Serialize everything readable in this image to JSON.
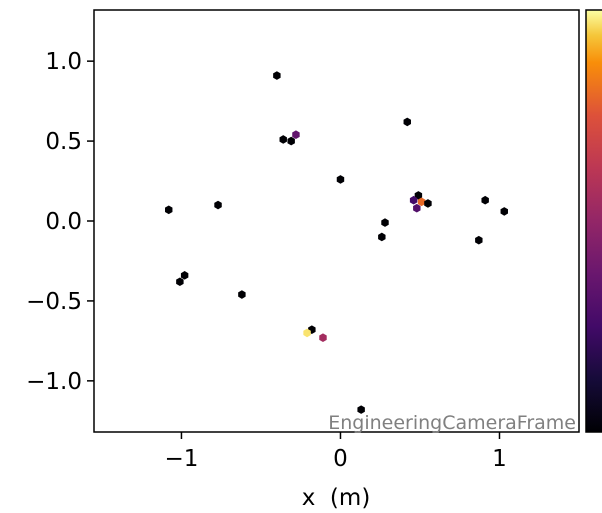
{
  "chart_data": {
    "type": "scatter",
    "xlabel": "x  (m)",
    "ylabel": "",
    "xlim": [
      -1.55,
      1.5
    ],
    "ylim": [
      -1.32,
      1.32
    ],
    "xticks": [
      -1,
      0,
      1
    ],
    "yticks": [
      1.0,
      0.5,
      0.0,
      -0.5,
      -1.0
    ],
    "xtick_labels": [
      "−1",
      "0",
      "1"
    ],
    "ytick_labels": [
      "1.0",
      "0.5",
      "0.0",
      "−0.5",
      "−1.0"
    ],
    "annotation": "EngineeringCameraFrame",
    "colormap": "inferno",
    "colorbar_range": [
      0,
      1
    ],
    "grid": false,
    "points": [
      {
        "x": -0.4,
        "y": 0.91,
        "c": 0.0
      },
      {
        "x": -0.36,
        "y": 0.51,
        "c": 0.0
      },
      {
        "x": -0.31,
        "y": 0.5,
        "c": 0.0
      },
      {
        "x": -0.28,
        "y": 0.54,
        "c": 0.35
      },
      {
        "x": 0.42,
        "y": 0.62,
        "c": 0.0
      },
      {
        "x": 0.0,
        "y": 0.26,
        "c": 0.0
      },
      {
        "x": -1.08,
        "y": 0.07,
        "c": 0.0
      },
      {
        "x": -0.77,
        "y": 0.1,
        "c": 0.0
      },
      {
        "x": 0.49,
        "y": 0.16,
        "c": 0.0
      },
      {
        "x": 0.46,
        "y": 0.13,
        "c": 0.25
      },
      {
        "x": 0.51,
        "y": 0.12,
        "c": 0.8
      },
      {
        "x": 0.55,
        "y": 0.11,
        "c": 0.0
      },
      {
        "x": 0.48,
        "y": 0.08,
        "c": 0.3
      },
      {
        "x": 0.91,
        "y": 0.13,
        "c": 0.0
      },
      {
        "x": 1.03,
        "y": 0.06,
        "c": 0.0
      },
      {
        "x": 0.28,
        "y": -0.01,
        "c": 0.0
      },
      {
        "x": 0.26,
        "y": -0.1,
        "c": 0.0
      },
      {
        "x": 0.87,
        "y": -0.12,
        "c": 0.0
      },
      {
        "x": -0.98,
        "y": -0.34,
        "c": 0.0
      },
      {
        "x": -1.01,
        "y": -0.38,
        "c": 0.0
      },
      {
        "x": -0.62,
        "y": -0.46,
        "c": 0.0
      },
      {
        "x": -0.18,
        "y": -0.68,
        "c": 0.0
      },
      {
        "x": -0.21,
        "y": -0.7,
        "c": 0.97
      },
      {
        "x": -0.11,
        "y": -0.73,
        "c": 0.55
      },
      {
        "x": 0.13,
        "y": -1.18,
        "c": 0.0
      }
    ]
  }
}
